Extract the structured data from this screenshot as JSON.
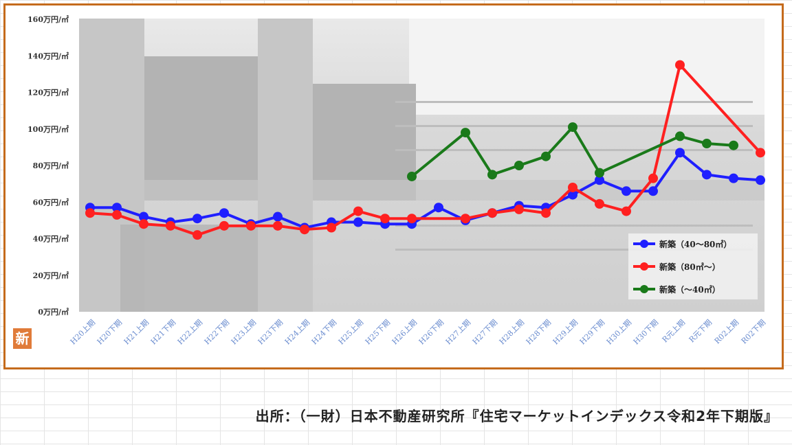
{
  "chart_data": {
    "type": "line",
    "title": "",
    "xlabel": "",
    "ylabel": "",
    "ylim": [
      0,
      160
    ],
    "yticks": [
      0,
      20,
      40,
      60,
      80,
      100,
      120,
      140,
      160
    ],
    "ytick_labels": [
      "0万円/㎡",
      "20万円/㎡",
      "40万円/㎡",
      "60万円/㎡",
      "80万円/㎡",
      "100万円/㎡",
      "120万円/㎡",
      "140万円/㎡",
      "160万円/㎡"
    ],
    "categories": [
      "H20上期",
      "H20下期",
      "H21上期",
      "H21下期",
      "H22上期",
      "H22下期",
      "H23上期",
      "H23下期",
      "H24上期",
      "H24下期",
      "H25上期",
      "H25下期",
      "H26上期",
      "H26下期",
      "H27上期",
      "H27下期",
      "H28上期",
      "H28下期",
      "H29上期",
      "H29下期",
      "H30上期",
      "H30下期",
      "R元上期",
      "R元下期",
      "R02上期",
      "R02下期"
    ],
    "series": [
      {
        "name": "新築（40～80㎡）",
        "color": "#1f1fff",
        "values": [
          57,
          57,
          52,
          49,
          51,
          54,
          48,
          52,
          46,
          49,
          49,
          48,
          48,
          57,
          50,
          54,
          58,
          57,
          64,
          72,
          66,
          66,
          87,
          75,
          73,
          72
        ]
      },
      {
        "name": "新築（80㎡～）",
        "color": "#ff2020",
        "values": [
          54,
          53,
          48,
          47,
          42,
          47,
          47,
          47,
          45,
          46,
          55,
          51,
          51,
          null,
          51,
          54,
          56,
          54,
          68,
          59,
          55,
          73,
          135,
          null,
          null,
          87
        ]
      },
      {
        "name": "新築（～40㎡）",
        "color": "#1a7a1a",
        "values": [
          null,
          null,
          null,
          null,
          null,
          null,
          null,
          null,
          null,
          null,
          null,
          null,
          74,
          null,
          98,
          75,
          80,
          85,
          101,
          76,
          null,
          null,
          96,
          92,
          91,
          null
        ]
      }
    ],
    "legend_position": "bottom-right",
    "grid": false
  },
  "badge_text": "新",
  "source_note": "出所：（一財）日本不動産研究所『住宅マーケットインデックス令和2年下期版』"
}
